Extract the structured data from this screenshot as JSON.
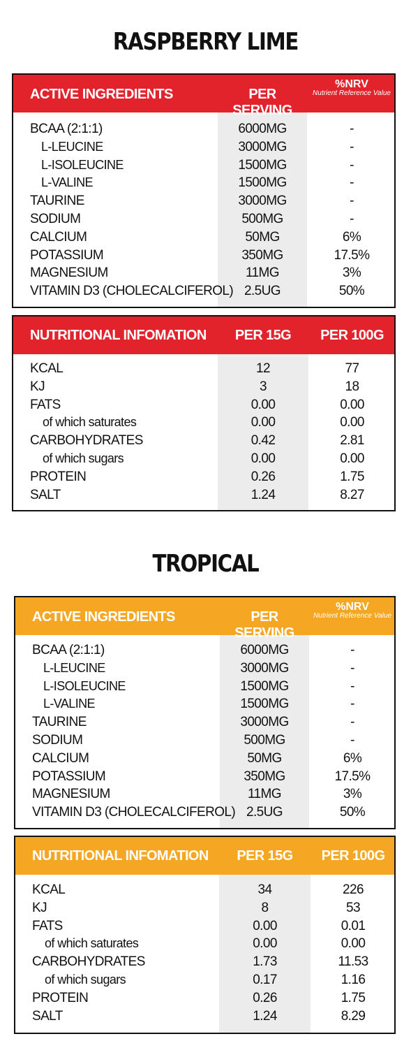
{
  "sections": [
    {
      "title": "RASPBERRY LIME",
      "active": {
        "headers": [
          "ACTIVE INGREDIENTS",
          "PER SERVING",
          "%NRV",
          "Nutrient Reference Value"
        ],
        "rows": [
          {
            "name": "BCAA (2:1:1)",
            "v1": "6000MG",
            "v2": "-"
          },
          {
            "name": "L-LEUCINE",
            "v1": "3000MG",
            "v2": "-"
          },
          {
            "name": "L-ISOLEUCINE",
            "v1": "1500MG",
            "v2": "-"
          },
          {
            "name": "L-VALINE",
            "v1": "1500MG",
            "v2": "-"
          },
          {
            "name": "TAURINE",
            "v1": "3000MG",
            "v2": "-"
          },
          {
            "name": "SODIUM",
            "v1": "500MG",
            "v2": "-"
          },
          {
            "name": "CALCIUM",
            "v1": "50MG",
            "v2": "6%"
          },
          {
            "name": "POTASSIUM",
            "v1": "350MG",
            "v2": "17.5%"
          },
          {
            "name": "MAGNESIUM",
            "v1": "11MG",
            "v2": "3%"
          },
          {
            "name": "VITAMIN D3",
            "name_suffix": " (CHOLECALCIFEROL)",
            "v1": "2.5UG",
            "v2": "50%"
          }
        ]
      },
      "nutrition": {
        "headers": [
          "NUTRITIONAL INFOMATION",
          "PER 15G",
          "PER 100G"
        ],
        "rows": [
          {
            "name": "KCAL",
            "v1": "12",
            "v2": "77"
          },
          {
            "name": "KJ",
            "v1": "3",
            "v2": "18"
          },
          {
            "name": "FATS",
            "v1": "0.00",
            "v2": "0.00"
          },
          {
            "name": "of which saturates",
            "v1": "0.00",
            "v2": "0.00"
          },
          {
            "name": "CARBOHYDRATES",
            "v1": "0.42",
            "v2": "2.81"
          },
          {
            "name": "of which sugars",
            "v1": "0.00",
            "v2": "0.00"
          },
          {
            "name": "PROTEIN",
            "v1": "0.26",
            "v2": "1.75"
          },
          {
            "name": "SALT",
            "v1": "1.24",
            "v2": "8.27"
          }
        ]
      }
    },
    {
      "title": "TROPICAL",
      "active": {
        "headers": [
          "ACTIVE INGREDIENTS",
          "PER SERVING",
          "%NRV",
          "Nutrient Reference Value"
        ],
        "rows": [
          {
            "name": "BCAA (2:1:1)",
            "v1": "6000MG",
            "v2": "-"
          },
          {
            "name": "L-LEUCINE",
            "v1": "3000MG",
            "v2": "-"
          },
          {
            "name": "L-ISOLEUCINE",
            "v1": "1500MG",
            "v2": "-"
          },
          {
            "name": "L-VALINE",
            "v1": "1500MG",
            "v2": "-"
          },
          {
            "name": "TAURINE",
            "v1": "3000MG",
            "v2": "-"
          },
          {
            "name": "SODIUM",
            "v1": "500MG",
            "v2": "-"
          },
          {
            "name": "CALCIUM",
            "v1": "50MG",
            "v2": "6%"
          },
          {
            "name": "POTASSIUM",
            "v1": "350MG",
            "v2": "17.5%"
          },
          {
            "name": "MAGNESIUM",
            "v1": "11MG",
            "v2": "3%"
          },
          {
            "name": "VITAMIN D3",
            "name_suffix": " (CHOLECALCIFEROL)",
            "v1": "2.5UG",
            "v2": "50%"
          }
        ]
      },
      "nutrition": {
        "headers": [
          "NUTRITIONAL INFOMATION",
          "PER 15G",
          "PER 100G"
        ],
        "rows": [
          {
            "name": "KCAL",
            "v1": "34",
            "v2": "226"
          },
          {
            "name": "KJ",
            "v1": "8",
            "v2": "53"
          },
          {
            "name": "FATS",
            "v1": "0.00",
            "v2": "0.01"
          },
          {
            "name": "of which saturates",
            "v1": "0.00",
            "v2": "0.00"
          },
          {
            "name": "CARBOHYDRATES",
            "v1": "1.73",
            "v2": "11.53"
          },
          {
            "name": "of which sugars",
            "v1": "0.17",
            "v2": "1.16"
          },
          {
            "name": "PROTEIN",
            "v1": "0.26",
            "v2": "1.75"
          },
          {
            "name": "SALT",
            "v1": "1.24",
            "v2": "8.29"
          }
        ]
      }
    }
  ],
  "colors": {
    "raspberry_header": "#e3232c",
    "tropical_header": "#f5a623",
    "column_shade": "#ececec"
  }
}
